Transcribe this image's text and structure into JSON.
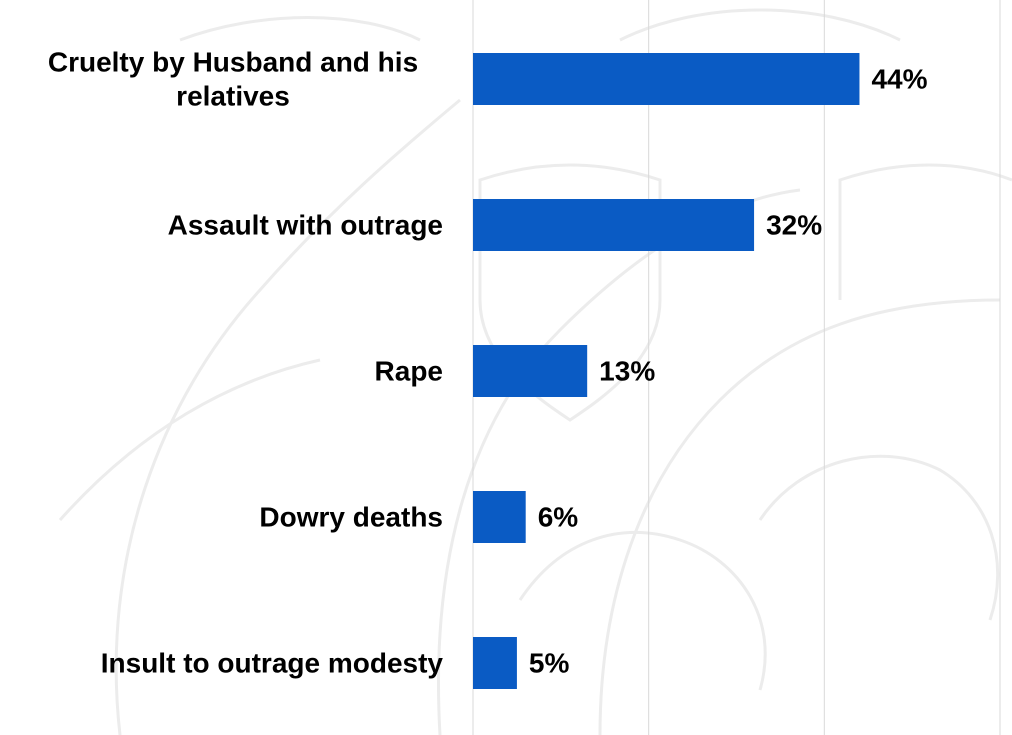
{
  "chart_data": {
    "type": "bar",
    "orientation": "horizontal",
    "categories": [
      "Cruelty by Husband and his relatives",
      "Assault with outrage",
      "Rape",
      "Dowry deaths",
      "Insult to outrage modesty"
    ],
    "category_label_lines": [
      [
        "Cruelty by Husband and his",
        "relatives"
      ],
      [
        "Assault with outrage"
      ],
      [
        "Rape"
      ],
      [
        "Dowry deaths"
      ],
      [
        "Insult to outrage modesty"
      ]
    ],
    "values": [
      44,
      32,
      13,
      6,
      5
    ],
    "value_labels": [
      "44%",
      "32%",
      "13%",
      "6%",
      "5%"
    ],
    "unit": "%",
    "xlim": [
      0,
      60
    ],
    "grid": true,
    "legend": "none",
    "bar_color": "#0a5bc4",
    "title": "",
    "xlabel": "",
    "ylabel": ""
  }
}
